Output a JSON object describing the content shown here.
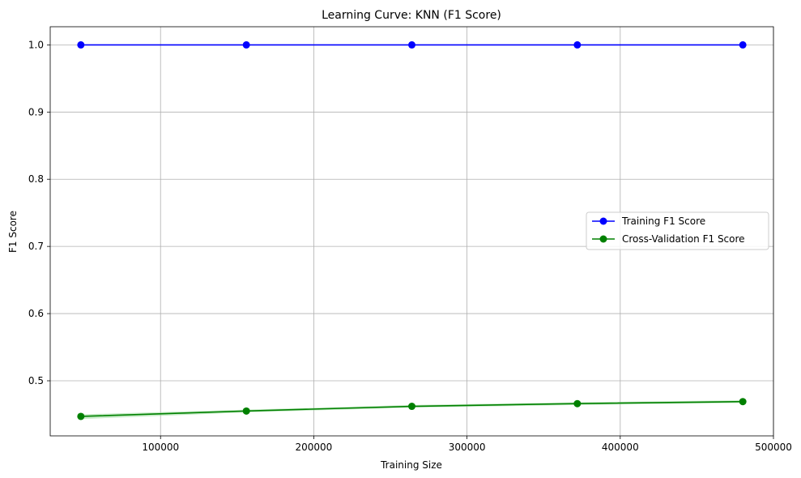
{
  "chart_data": {
    "type": "line",
    "title": "Learning Curve: KNN (F1 Score)",
    "xlabel": "Training Size",
    "ylabel": "F1 Score",
    "xlim": [
      28000,
      500000
    ],
    "ylim": [
      0.418,
      1.027
    ],
    "xticks": [
      100000,
      200000,
      300000,
      400000,
      500000
    ],
    "yticks": [
      0.5,
      0.6,
      0.7,
      0.8,
      0.9,
      1.0
    ],
    "grid": true,
    "legend_position": "center-right",
    "x": [
      48000,
      156000,
      264000,
      372000,
      480000
    ],
    "series": [
      {
        "name": "Training F1 Score",
        "color": "#0000ff",
        "marker": "circle",
        "values": [
          1.0,
          1.0,
          1.0,
          1.0,
          1.0
        ],
        "band_lower": [
          1.0,
          1.0,
          1.0,
          1.0,
          1.0
        ],
        "band_upper": [
          1.0,
          1.0,
          1.0,
          1.0,
          1.0
        ]
      },
      {
        "name": "Cross-Validation F1 Score",
        "color": "#008000",
        "band_color": "#8fd88f",
        "marker": "circle",
        "values": [
          0.447,
          0.455,
          0.462,
          0.466,
          0.469
        ],
        "band_lower": [
          0.443,
          0.453,
          0.46,
          0.464,
          0.467
        ],
        "band_upper": [
          0.45,
          0.457,
          0.464,
          0.468,
          0.471
        ]
      }
    ]
  }
}
